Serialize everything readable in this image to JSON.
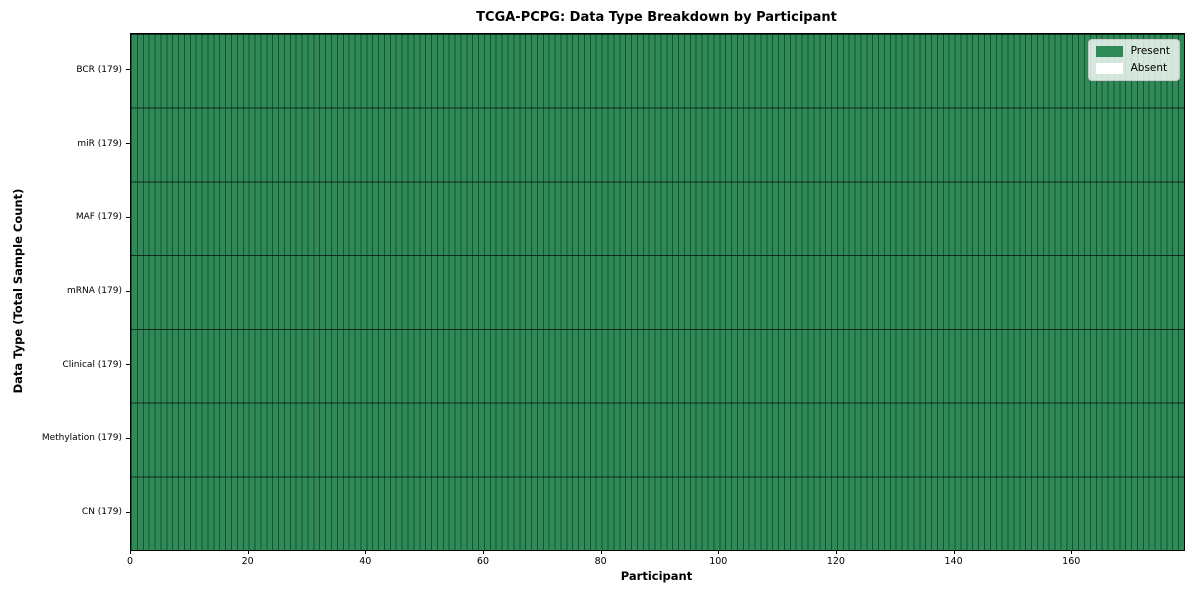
{
  "chart_data": {
    "type": "heatmap",
    "title": "TCGA-PCPG: Data Type Breakdown by Participant",
    "xlabel": "Participant",
    "ylabel": "Data Type (Total Sample Count)",
    "n_participants": 179,
    "x_range": [
      0,
      179
    ],
    "x_ticks": [
      0,
      20,
      40,
      60,
      80,
      100,
      120,
      140,
      160
    ],
    "rows": [
      {
        "label": "BCR (179)",
        "name": "BCR",
        "total": 179,
        "present": 179,
        "absent": 0
      },
      {
        "label": "miR (179)",
        "name": "miR",
        "total": 179,
        "present": 179,
        "absent": 0
      },
      {
        "label": "MAF (179)",
        "name": "MAF",
        "total": 179,
        "present": 179,
        "absent": 0
      },
      {
        "label": "mRNA (179)",
        "name": "mRNA",
        "total": 179,
        "present": 179,
        "absent": 0
      },
      {
        "label": "Clinical (179)",
        "name": "Clinical",
        "total": 179,
        "present": 179,
        "absent": 0
      },
      {
        "label": "Methylation (179)",
        "name": "Methylation",
        "total": 179,
        "present": 179,
        "absent": 0
      },
      {
        "label": "CN (179)",
        "name": "CN",
        "total": 179,
        "present": 179,
        "absent": 0
      }
    ],
    "cell_values": "all 7 x 179 cells = Present",
    "legend": [
      {
        "label": "Present",
        "color": "#2e8b57"
      },
      {
        "label": "Absent",
        "color": "#ffffff"
      }
    ],
    "legend_position": "upper right",
    "grid": "black cell-border lines between every column and row"
  },
  "colors": {
    "present": "#2e8b57",
    "absent": "#ffffff",
    "axis": "#000000",
    "col_line": "rgba(0,0,0,0.42)",
    "row_line": "rgba(0,0,0,0.68)",
    "legend_border": "#c9c9c9"
  }
}
